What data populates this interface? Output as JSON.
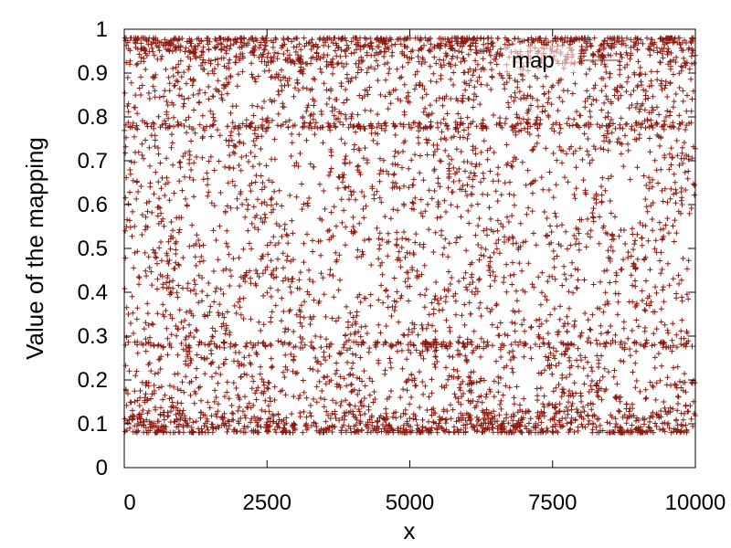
{
  "chart_data": {
    "type": "scatter",
    "title": "",
    "xlabel": "x",
    "ylabel": "Value of the mapping",
    "xlim": [
      0,
      10000
    ],
    "ylim": [
      0,
      1
    ],
    "xticks": [
      0,
      2500,
      5000,
      7500,
      10000
    ],
    "xtick_labels": [
      "0",
      "2500",
      "5000",
      "7500",
      "10000"
    ],
    "yticks": [
      0,
      0.1,
      0.2,
      0.3,
      0.4,
      0.5,
      0.6,
      0.7,
      0.8,
      0.9,
      1
    ],
    "ytick_labels": [
      "0",
      "0.1",
      "0.2",
      "0.3",
      "0.4",
      "0.5",
      "0.6",
      "0.7",
      "0.8",
      "0.9",
      "1"
    ],
    "grid": false,
    "legend_position": "top-right",
    "marker": "plus",
    "series": [
      {
        "name": "map",
        "color": "#8b1a10",
        "x_range": [
          0,
          10000
        ],
        "y_range": [
          0.08,
          0.98
        ],
        "dense_bands_y": [
          0.08,
          0.28,
          0.78,
          0.98
        ],
        "point_count_approx": 10000
      }
    ]
  }
}
